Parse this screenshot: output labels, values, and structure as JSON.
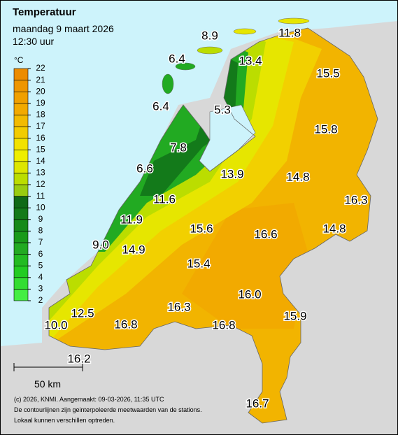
{
  "header": {
    "title": "Temperatuur",
    "date": "maandag 9 maart 2026",
    "time": "12:30 uur"
  },
  "legend": {
    "unit": "°C",
    "ticks": [
      2,
      3,
      4,
      5,
      6,
      7,
      8,
      9,
      10,
      11,
      12,
      13,
      14,
      15,
      16,
      17,
      18,
      19,
      20,
      21,
      22
    ],
    "colors": [
      "#44ee44",
      "#33dd33",
      "#22cc22",
      "#22bb22",
      "#22aa22",
      "#1a9a1a",
      "#168a1a",
      "#137a1a",
      "#106a18",
      "#99cc11",
      "#bbdd00",
      "#dde600",
      "#eeee00",
      "#f2e200",
      "#f2cc00",
      "#f2bb00",
      "#f2aa00",
      "#f0a000",
      "#ee9600",
      "#ec8c00"
    ]
  },
  "stations": [
    "8.9",
    "11.8",
    "6.4",
    "13.4",
    "15.5",
    "6.4",
    "5.3",
    "15.8",
    "7.8",
    "6.6",
    "13.9",
    "14.8",
    "16.3",
    "11.6",
    "11.9",
    "15.6",
    "16.6",
    "14.8",
    "9.0",
    "14.9",
    "15.4",
    "16.0",
    "16.3",
    "12.5",
    "15.9",
    "16.8",
    "16.8",
    "10.0",
    "16.2",
    "16.7"
  ],
  "scale": "50 km",
  "footer": [
    "(c) 2026, KNMI. Aangemaakt: 09-03-2026, 11:35 UTC",
    "De contourlijnen zijn geinterpoleerde meetwaarden van de stations.",
    "Lokaal kunnen verschillen optreden."
  ]
}
